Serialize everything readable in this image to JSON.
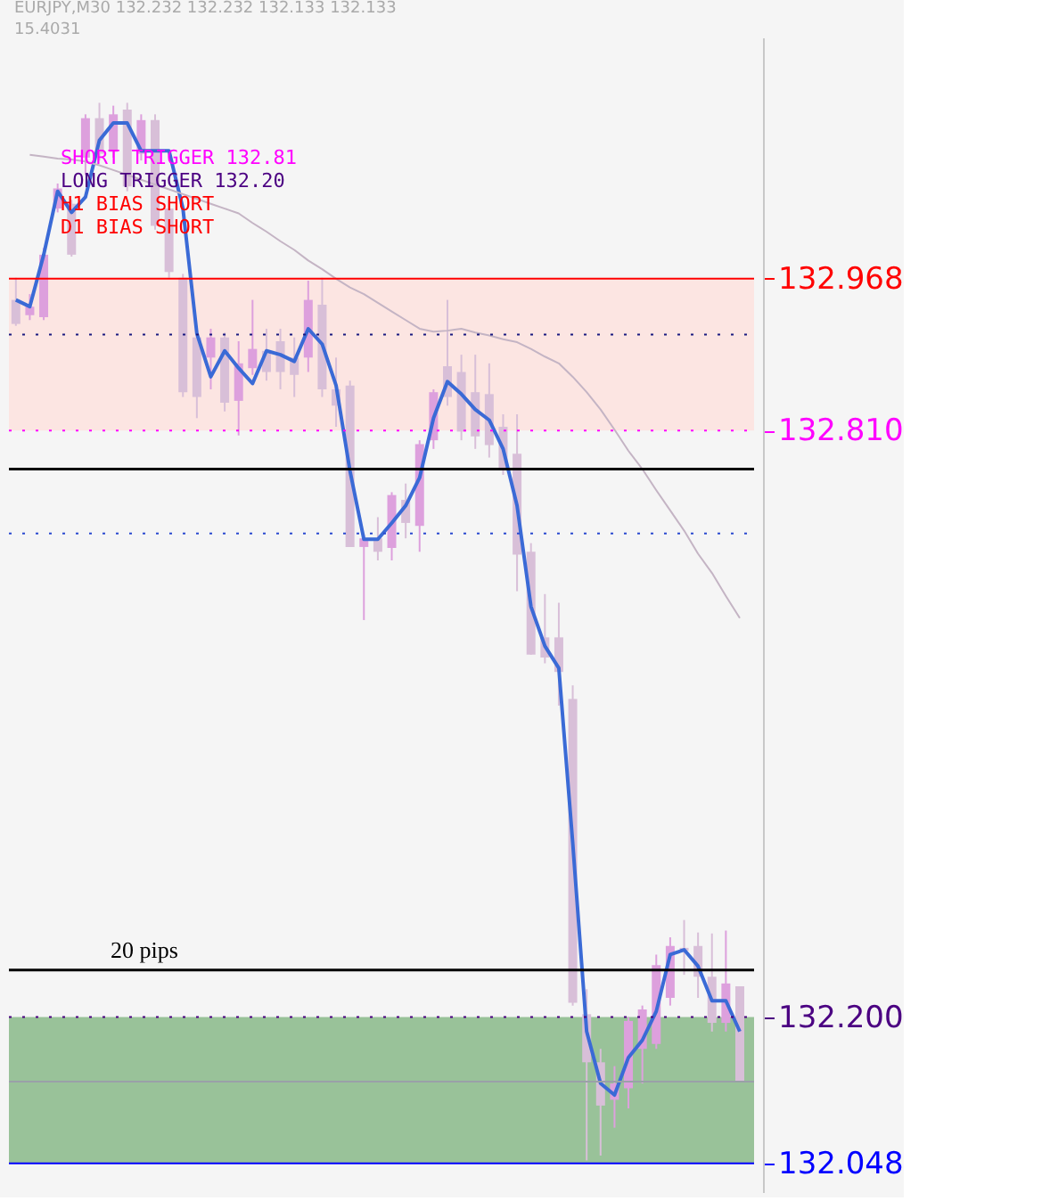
{
  "chart_data": {
    "type": "candlestick",
    "title": "EURJPY,M30  132.232 132.232 132.133 132.133",
    "subtitle": "15.4031",
    "categories": [
      null,
      null,
      null,
      null,
      null,
      null,
      null,
      null,
      null,
      null,
      null,
      null,
      null,
      null,
      null,
      null,
      null,
      null,
      null,
      null,
      null,
      null,
      null,
      null,
      null,
      null,
      null,
      null,
      null,
      null,
      null,
      null,
      null,
      null,
      null,
      null,
      null,
      null,
      null,
      null,
      null,
      null,
      null,
      null,
      null,
      null,
      null,
      null,
      null,
      null,
      null,
      null,
      null
    ],
    "colors": [
      "#d8bfd8",
      "#dda0dd",
      "#dda0dd",
      "#dda0dd",
      "#d8bfd8",
      "#dda0dd",
      "#d8bfd8",
      "#dda0dd",
      "#d8bfd8",
      "#dda0dd",
      "#d8bfd8",
      "#d8bfd8",
      "#d8bfd8",
      "#d8bfd8",
      "#dda0dd",
      "#d8bfd8",
      "#dda0dd",
      "#dda0dd",
      "#d8bfd8",
      "#d8bfd8",
      "#d8bfd8",
      "#dda0dd",
      "#d8bfd8",
      "#d8bfd8",
      "#d8bfd8",
      "#dda0dd",
      "#d8bfd8",
      "#dda0dd",
      "#d8bfd8",
      "#dda0dd",
      "#dda0dd",
      "#d8bfd8",
      "#d8bfd8",
      "#d8bfd8",
      "#d8bfd8",
      "#d8bfd8",
      "#d8bfd8",
      "#d8bfd8",
      "#d8bfd8",
      "#d8bfd8",
      "#d8bfd8",
      "#d8bfd8",
      "#d8bfd8",
      "#dda0dd",
      "#dda0dd",
      "#dda0dd",
      "#dda0dd",
      "#dda0dd",
      "#d8bfd8",
      "#d8bfd8",
      "#d8bfd8",
      "#dda0dd",
      "#d8bfd8"
    ],
    "ohlc": [
      [
        132.946,
        132.969,
        132.919,
        132.921
      ],
      [
        132.93,
        132.952,
        132.925,
        132.939
      ],
      [
        132.928,
        133.0,
        132.925,
        132.993
      ],
      [
        133.041,
        133.067,
        133.037,
        133.062
      ],
      [
        133.046,
        133.05,
        132.991,
        132.993
      ],
      [
        133.094,
        133.139,
        133.076,
        133.135
      ],
      [
        133.135,
        133.151,
        133.091,
        133.098
      ],
      [
        133.1,
        133.148,
        133.094,
        133.139
      ],
      [
        133.144,
        133.151,
        133.059,
        133.064
      ],
      [
        133.098,
        133.139,
        133.091,
        133.133
      ],
      [
        133.133,
        133.139,
        133.019,
        133.023
      ],
      [
        133.041,
        133.05,
        132.969,
        132.975
      ],
      [
        132.969,
        132.973,
        132.845,
        132.85
      ],
      [
        132.907,
        132.912,
        132.823,
        132.845
      ],
      [
        132.886,
        132.916,
        132.853,
        132.907
      ],
      [
        132.907,
        132.912,
        132.83,
        132.839
      ],
      [
        132.841,
        132.903,
        132.805,
        132.88
      ],
      [
        132.875,
        132.946,
        132.868,
        132.895
      ],
      [
        132.893,
        132.916,
        132.862,
        132.871
      ],
      [
        132.903,
        132.916,
        132.853,
        132.871
      ],
      [
        132.886,
        132.907,
        132.845,
        132.868
      ],
      [
        132.886,
        132.966,
        132.871,
        132.946
      ],
      [
        132.941,
        132.969,
        132.845,
        132.853
      ],
      [
        132.853,
        132.886,
        132.814,
        132.836
      ],
      [
        132.857,
        132.862,
        132.689,
        132.689
      ],
      [
        132.689,
        132.702,
        132.613,
        132.698
      ],
      [
        132.698,
        132.72,
        132.675,
        132.684
      ],
      [
        132.688,
        132.746,
        132.675,
        132.743
      ],
      [
        132.738,
        132.755,
        132.698,
        132.714
      ],
      [
        132.711,
        132.8,
        132.684,
        132.796
      ],
      [
        132.8,
        132.853,
        132.791,
        132.85
      ],
      [
        132.877,
        132.946,
        132.836,
        132.845
      ],
      [
        132.871,
        132.889,
        132.8,
        132.809
      ],
      [
        132.85,
        132.889,
        132.791,
        132.804
      ],
      [
        132.848,
        132.88,
        132.782,
        132.795
      ],
      [
        132.814,
        132.827,
        132.764,
        132.77
      ],
      [
        132.786,
        132.827,
        132.643,
        132.681
      ],
      [
        132.684,
        132.693,
        132.577,
        132.577
      ],
      [
        132.595,
        132.64,
        132.568,
        132.574
      ],
      [
        132.595,
        132.631,
        132.524,
        132.559
      ],
      [
        132.531,
        132.545,
        132.212,
        132.215
      ],
      [
        132.203,
        132.229,
        132.051,
        132.153
      ],
      [
        132.153,
        132.167,
        132.056,
        132.108
      ],
      [
        132.114,
        132.149,
        132.085,
        132.131
      ],
      [
        132.126,
        132.2,
        132.105,
        132.196
      ],
      [
        132.167,
        132.212,
        132.131,
        132.208
      ],
      [
        132.172,
        132.265,
        132.167,
        132.254
      ],
      [
        132.22,
        132.283,
        132.212,
        132.274
      ],
      [
        132.269,
        132.301,
        132.244,
        132.272
      ],
      [
        132.274,
        132.288,
        132.22,
        132.242
      ],
      [
        132.242,
        132.287,
        132.185,
        132.194
      ],
      [
        132.194,
        132.29,
        132.185,
        132.235
      ],
      [
        132.232,
        132.232,
        132.133,
        132.133
      ]
    ],
    "series": [
      {
        "type": "line",
        "color": "#3a6ad6",
        "values": [
          132.946,
          132.939,
          132.993,
          133.059,
          133.037,
          133.053,
          133.112,
          133.13,
          133.13,
          133.101,
          133.101,
          133.101,
          133.041,
          132.911,
          132.866,
          132.893,
          132.875,
          132.859,
          132.893,
          132.889,
          132.882,
          132.916,
          132.9,
          132.857,
          132.768,
          132.697,
          132.697,
          132.714,
          132.732,
          132.761,
          132.823,
          132.861,
          132.848,
          132.832,
          132.821,
          132.791,
          132.732,
          132.627,
          132.586,
          132.563,
          132.381,
          132.185,
          132.131,
          132.119,
          132.158,
          132.176,
          132.206,
          132.265,
          132.27,
          132.253,
          132.217,
          132.217,
          132.185
        ]
      },
      {
        "type": "line",
        "color": "#c4b4c4",
        "values": [
          null,
          133.097,
          133.095,
          133.093,
          133.092,
          133.09,
          133.086,
          133.081,
          133.076,
          133.071,
          133.066,
          133.061,
          133.056,
          133.051,
          133.046,
          133.041,
          133.036,
          133.026,
          133.017,
          133.007,
          132.998,
          132.987,
          132.978,
          132.968,
          132.959,
          132.952,
          132.943,
          132.934,
          132.925,
          132.916,
          132.913,
          132.914,
          132.916,
          132.912,
          132.909,
          132.905,
          132.902,
          132.895,
          132.887,
          132.88,
          132.866,
          132.85,
          132.832,
          132.811,
          132.789,
          132.77,
          132.748,
          132.727,
          132.706,
          132.682,
          132.662,
          132.638,
          132.615
        ]
      }
    ],
    "bands": [
      {
        "axis": "y",
        "from": 132.81,
        "to": 132.968,
        "color": "#fde3e0"
      },
      {
        "axis": "y",
        "from": 132.048,
        "to": 132.2,
        "color": "#8fbc8f"
      }
    ],
    "ref_lines": [
      {
        "axis": "y",
        "value": 132.968,
        "color": "#ff0000",
        "line_style": "solid"
      },
      {
        "axis": "y",
        "value": 132.81,
        "color": "#ff00ff",
        "line_style": "dotted"
      },
      {
        "axis": "y",
        "value": 132.77,
        "color": "#000000",
        "line_style": "solid"
      },
      {
        "axis": "y",
        "value": 132.91,
        "color": "#1a1a80",
        "line_style": "dotted"
      },
      {
        "axis": "y",
        "value": 132.703,
        "color": "#2a4ad0",
        "line_style": "dotted"
      },
      {
        "axis": "y",
        "value": 132.249,
        "color": "#000000",
        "line_style": "solid"
      },
      {
        "axis": "y",
        "value": 132.2,
        "color": "#4b0082",
        "line_style": "dotted"
      },
      {
        "axis": "y",
        "value": 132.133,
        "color": "#9aa0a8",
        "line_style": "solid"
      },
      {
        "axis": "y",
        "value": 132.048,
        "color": "#0000ff",
        "line_style": "solid"
      }
    ],
    "annotations": [
      "SHORT TRIGGER 132.81",
      "LONG TRIGGER  132.20",
      "H1 BIAS SHORT",
      "D1 BIAS SHORT",
      {
        "text": "20 pips",
        "y": 132.249
      }
    ],
    "yticks": [
      {
        "value": 132.968,
        "label": "132.968"
      },
      {
        "value": 132.81,
        "label": "132.810"
      },
      {
        "value": 132.2,
        "label": "132.200"
      },
      {
        "value": 132.048,
        "label": "132.048"
      }
    ],
    "ylim": [
      132.018,
      133.219
    ],
    "tick_labels": "y",
    "grid": false
  }
}
